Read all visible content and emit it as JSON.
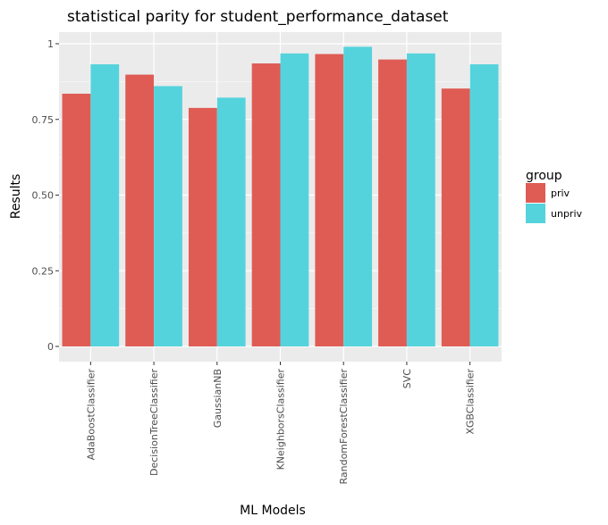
{
  "chart_data": {
    "type": "bar",
    "title": "statistical parity for student_performance_dataset",
    "xlabel": "ML Models",
    "ylabel": "Results",
    "categories": [
      "AdaBoostClassifier",
      "DecisionTreeClassifier",
      "GaussianNB",
      "KNeighborsClassifier",
      "RandomForestClassifier",
      "SVC",
      "XGBClassifier"
    ],
    "series": [
      {
        "name": "priv",
        "color": "#df5c55",
        "values": [
          0.835,
          0.898,
          0.788,
          0.935,
          0.966,
          0.948,
          0.852
        ]
      },
      {
        "name": "unpriv",
        "color": "#55d3dc",
        "values": [
          0.932,
          0.86,
          0.822,
          0.968,
          0.99,
          0.968,
          0.932
        ]
      }
    ],
    "ylim": [
      -0.05,
      1.04
    ],
    "yticks": [
      0,
      0.25,
      0.5,
      0.75,
      1
    ],
    "ytick_labels": [
      "0",
      "0.25",
      "0.50",
      "0.75",
      "1"
    ],
    "grid": true,
    "legend": {
      "title": "group",
      "position": "right"
    }
  }
}
